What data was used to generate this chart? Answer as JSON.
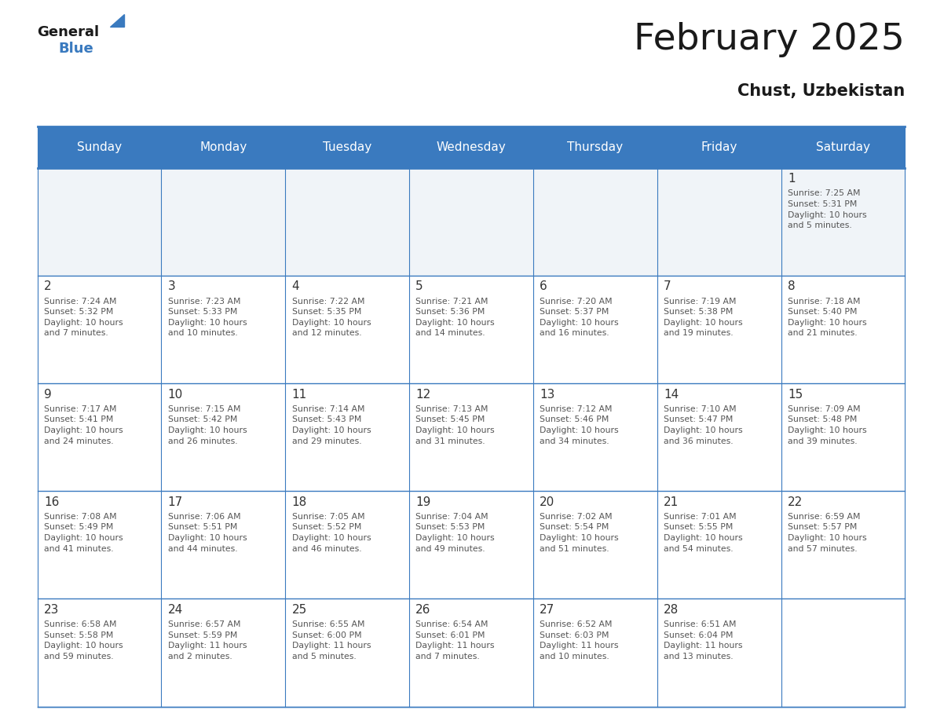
{
  "title": "February 2025",
  "subtitle": "Chust, Uzbekistan",
  "days_of_week": [
    "Sunday",
    "Monday",
    "Tuesday",
    "Wednesday",
    "Thursday",
    "Friday",
    "Saturday"
  ],
  "header_bg": "#3a7abf",
  "header_text": "#ffffff",
  "cell_bg_light": "#f0f4f8",
  "cell_bg_white": "#ffffff",
  "border_color": "#3a7abf",
  "text_color": "#333333",
  "day_num_color": "#333333",
  "calendar_data": [
    [
      null,
      null,
      null,
      null,
      null,
      null,
      {
        "day": 1,
        "sunrise": "7:25 AM",
        "sunset": "5:31 PM",
        "daylight": "10 hours\nand 5 minutes."
      }
    ],
    [
      {
        "day": 2,
        "sunrise": "7:24 AM",
        "sunset": "5:32 PM",
        "daylight": "10 hours\nand 7 minutes."
      },
      {
        "day": 3,
        "sunrise": "7:23 AM",
        "sunset": "5:33 PM",
        "daylight": "10 hours\nand 10 minutes."
      },
      {
        "day": 4,
        "sunrise": "7:22 AM",
        "sunset": "5:35 PM",
        "daylight": "10 hours\nand 12 minutes."
      },
      {
        "day": 5,
        "sunrise": "7:21 AM",
        "sunset": "5:36 PM",
        "daylight": "10 hours\nand 14 minutes."
      },
      {
        "day": 6,
        "sunrise": "7:20 AM",
        "sunset": "5:37 PM",
        "daylight": "10 hours\nand 16 minutes."
      },
      {
        "day": 7,
        "sunrise": "7:19 AM",
        "sunset": "5:38 PM",
        "daylight": "10 hours\nand 19 minutes."
      },
      {
        "day": 8,
        "sunrise": "7:18 AM",
        "sunset": "5:40 PM",
        "daylight": "10 hours\nand 21 minutes."
      }
    ],
    [
      {
        "day": 9,
        "sunrise": "7:17 AM",
        "sunset": "5:41 PM",
        "daylight": "10 hours\nand 24 minutes."
      },
      {
        "day": 10,
        "sunrise": "7:15 AM",
        "sunset": "5:42 PM",
        "daylight": "10 hours\nand 26 minutes."
      },
      {
        "day": 11,
        "sunrise": "7:14 AM",
        "sunset": "5:43 PM",
        "daylight": "10 hours\nand 29 minutes."
      },
      {
        "day": 12,
        "sunrise": "7:13 AM",
        "sunset": "5:45 PM",
        "daylight": "10 hours\nand 31 minutes."
      },
      {
        "day": 13,
        "sunrise": "7:12 AM",
        "sunset": "5:46 PM",
        "daylight": "10 hours\nand 34 minutes."
      },
      {
        "day": 14,
        "sunrise": "7:10 AM",
        "sunset": "5:47 PM",
        "daylight": "10 hours\nand 36 minutes."
      },
      {
        "day": 15,
        "sunrise": "7:09 AM",
        "sunset": "5:48 PM",
        "daylight": "10 hours\nand 39 minutes."
      }
    ],
    [
      {
        "day": 16,
        "sunrise": "7:08 AM",
        "sunset": "5:49 PM",
        "daylight": "10 hours\nand 41 minutes."
      },
      {
        "day": 17,
        "sunrise": "7:06 AM",
        "sunset": "5:51 PM",
        "daylight": "10 hours\nand 44 minutes."
      },
      {
        "day": 18,
        "sunrise": "7:05 AM",
        "sunset": "5:52 PM",
        "daylight": "10 hours\nand 46 minutes."
      },
      {
        "day": 19,
        "sunrise": "7:04 AM",
        "sunset": "5:53 PM",
        "daylight": "10 hours\nand 49 minutes."
      },
      {
        "day": 20,
        "sunrise": "7:02 AM",
        "sunset": "5:54 PM",
        "daylight": "10 hours\nand 51 minutes."
      },
      {
        "day": 21,
        "sunrise": "7:01 AM",
        "sunset": "5:55 PM",
        "daylight": "10 hours\nand 54 minutes."
      },
      {
        "day": 22,
        "sunrise": "6:59 AM",
        "sunset": "5:57 PM",
        "daylight": "10 hours\nand 57 minutes."
      }
    ],
    [
      {
        "day": 23,
        "sunrise": "6:58 AM",
        "sunset": "5:58 PM",
        "daylight": "10 hours\nand 59 minutes."
      },
      {
        "day": 24,
        "sunrise": "6:57 AM",
        "sunset": "5:59 PM",
        "daylight": "11 hours\nand 2 minutes."
      },
      {
        "day": 25,
        "sunrise": "6:55 AM",
        "sunset": "6:00 PM",
        "daylight": "11 hours\nand 5 minutes."
      },
      {
        "day": 26,
        "sunrise": "6:54 AM",
        "sunset": "6:01 PM",
        "daylight": "11 hours\nand 7 minutes."
      },
      {
        "day": 27,
        "sunrise": "6:52 AM",
        "sunset": "6:03 PM",
        "daylight": "11 hours\nand 10 minutes."
      },
      {
        "day": 28,
        "sunrise": "6:51 AM",
        "sunset": "6:04 PM",
        "daylight": "11 hours\nand 13 minutes."
      },
      null
    ]
  ]
}
